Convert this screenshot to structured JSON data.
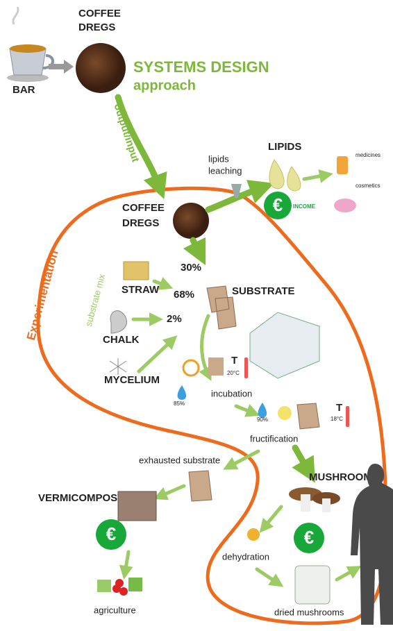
{
  "header": {
    "coffee_dregs": [
      "COFFEE",
      "DREGS"
    ],
    "bar": "BAR",
    "title": "SYSTEMS DESIGN",
    "subtitle": "approach",
    "flow_label": "output/input"
  },
  "lipids": {
    "process": [
      "lipids",
      "leaching"
    ],
    "title": "LIPIDS",
    "products": [
      "medicines",
      "cosmetics"
    ],
    "income_icon": "€",
    "income": "INCOME"
  },
  "experimentation": {
    "label": "Experimentation",
    "coffee_dregs": [
      "COFFEE",
      "DREGS"
    ],
    "substrate_mix": "substrate mix",
    "coffee_share": "30%",
    "straw": "STRAW",
    "straw_share": "68%",
    "substrate": "SUBSTRATE",
    "chalk": "CHALK",
    "chalk_share": "2%",
    "mycelium": "MYCELIUM"
  },
  "incubation": {
    "temp_label": "T",
    "temp": "20°C",
    "humidity": "85%",
    "label": "incubation"
  },
  "fructification": {
    "humidity": "90%",
    "temp_label": "T",
    "temp": "18°C",
    "label": "fructification"
  },
  "outputs": {
    "exhausted": "exhausted substrate",
    "vermicompost": "VERMICOMPOST",
    "vermicompost_icon": "€",
    "agriculture": "agriculture",
    "mushrooms": "MUSHROOMS",
    "mushrooms_icon": "€",
    "dehydration": "dehydration",
    "dried": "dried mushrooms"
  }
}
